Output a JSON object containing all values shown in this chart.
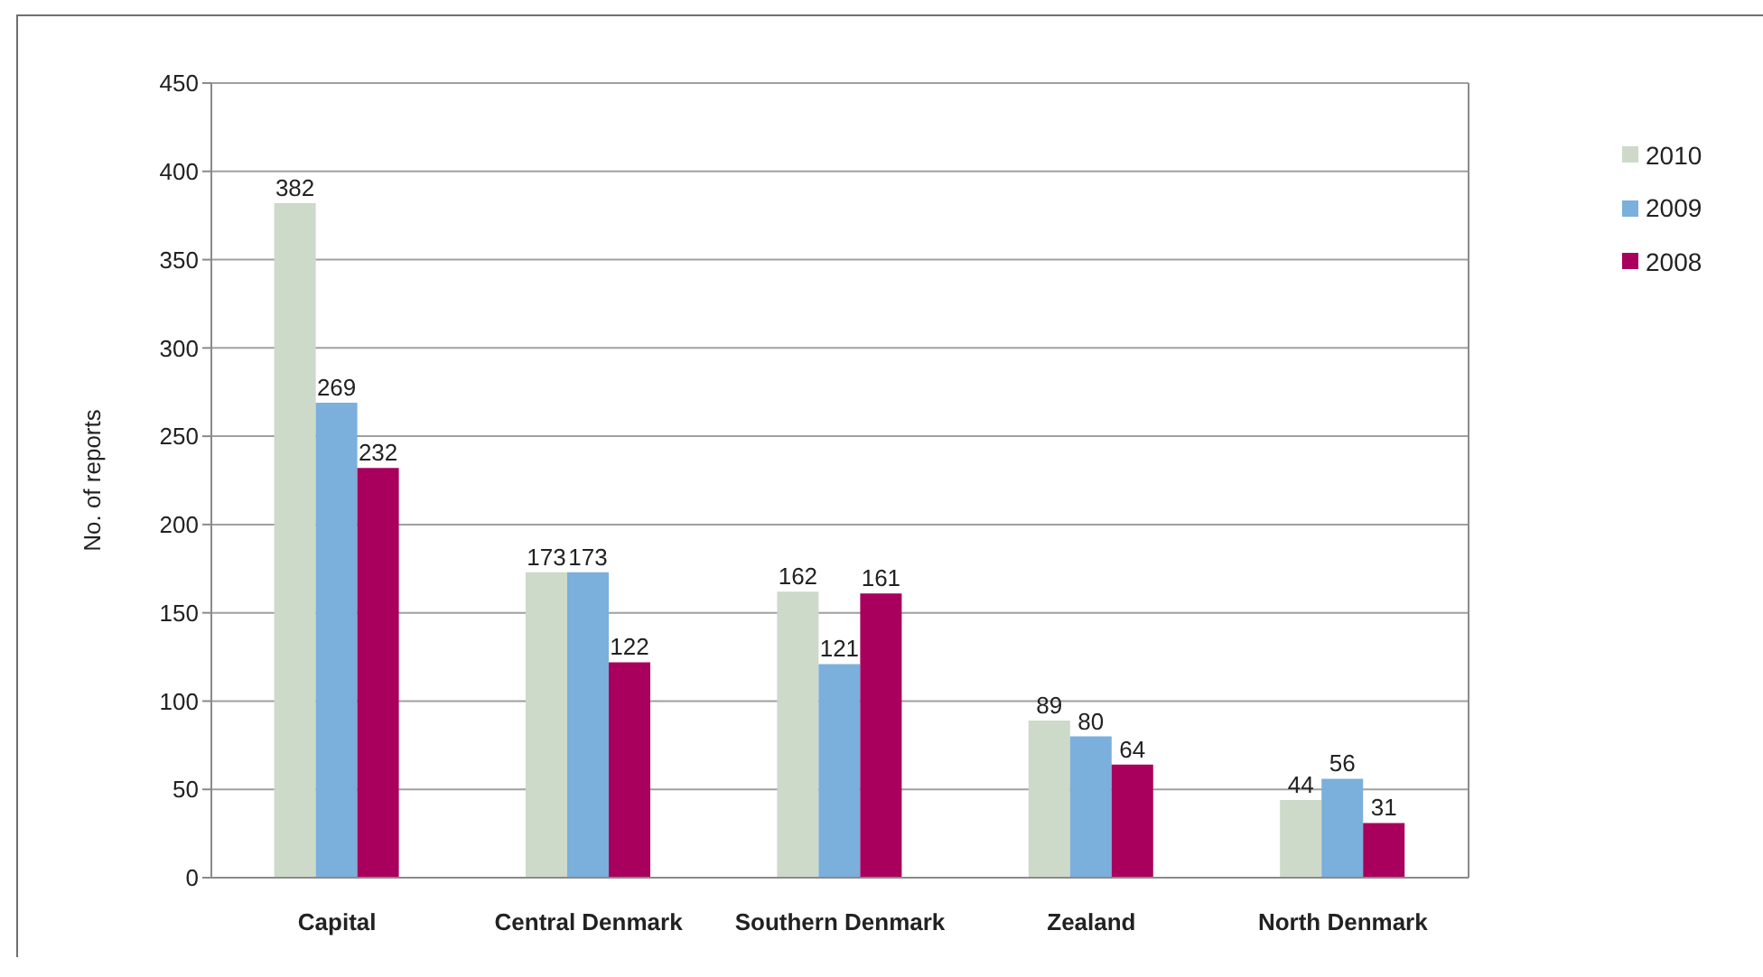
{
  "chart_data": {
    "type": "bar",
    "ylabel": "No. of reports",
    "categories": [
      "Capital",
      "Central Denmark",
      "Southern Denmark",
      "Zealand",
      "North Denmark"
    ],
    "series": [
      {
        "name": "2010",
        "color": "#cdd9c9",
        "values": [
          382,
          173,
          162,
          89,
          44
        ]
      },
      {
        "name": "2009",
        "color": "#7bafdc",
        "values": [
          269,
          173,
          121,
          80,
          56
        ]
      },
      {
        "name": "2008",
        "color": "#a8005c",
        "values": [
          232,
          122,
          161,
          64,
          31
        ]
      }
    ],
    "ylim": [
      0,
      450
    ],
    "yticks": [
      0,
      50,
      100,
      150,
      200,
      250,
      300,
      350,
      400,
      450
    ],
    "grid": "y",
    "legend": "right",
    "data_labels": true
  }
}
